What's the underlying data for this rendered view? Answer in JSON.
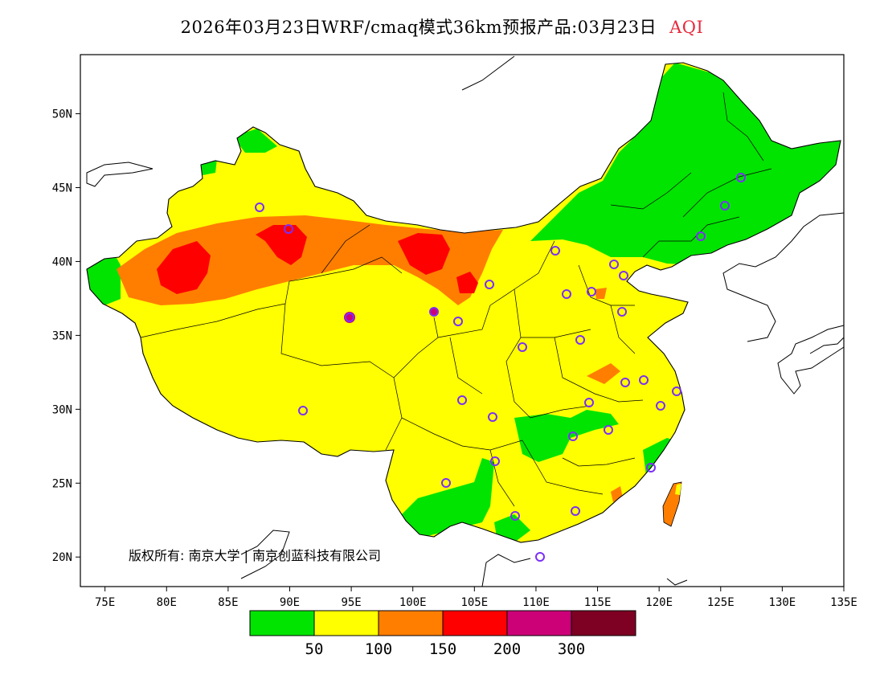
{
  "header": {
    "title": "2026年03月23日WRF/cmaq模式36km预报产品:03月23日",
    "variable": "AQI"
  },
  "colors": {
    "good": "#00e400",
    "moderate": "#ffff00",
    "usg": "#ff7e00",
    "unhealthy": "#ff0000",
    "very_unhealthy": "#cc0077",
    "hazardous": "#7e0023",
    "station_ring": "#7b2ff7",
    "boundary": "#000000"
  },
  "map": {
    "lon_ticks": [
      "75E",
      "80E",
      "85E",
      "90E",
      "95E",
      "100E",
      "105E",
      "110E",
      "115E",
      "120E",
      "125E",
      "130E",
      "135E"
    ],
    "lat_ticks": [
      "20N",
      "25N",
      "30N",
      "35N",
      "40N",
      "45N",
      "50N"
    ],
    "lon_range": [
      73,
      135
    ],
    "lat_range": [
      18,
      54
    ],
    "copyright": "版权所有: 南京大学 | 南京创蓝科技有限公司"
  },
  "legend": {
    "labels": [
      "50",
      "100",
      "150",
      "200",
      "300"
    ]
  }
}
